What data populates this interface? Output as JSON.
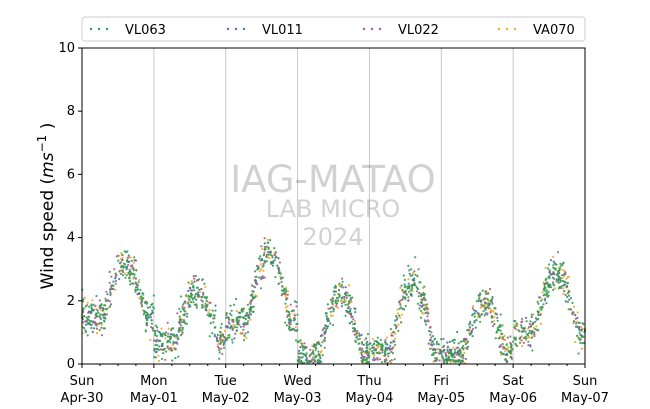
{
  "chart_data": {
    "type": "scatter",
    "title": "",
    "ylabel_prefix": "Wind speed (",
    "ylabel_unit": "ms",
    "ylabel_exp": "−1",
    "ylabel_suffix": " )",
    "xlabel": "",
    "xlim_days": [
      0,
      7
    ],
    "ylim": [
      0,
      10
    ],
    "y_ticks": [
      0,
      2,
      4,
      6,
      8,
      10
    ],
    "x_ticks": [
      {
        "line1": "Sun",
        "line2": "Apr-30"
      },
      {
        "line1": "Mon",
        "line2": "May-01"
      },
      {
        "line1": "Tue",
        "line2": "May-02"
      },
      {
        "line1": "Wed",
        "line2": "May-03"
      },
      {
        "line1": "Thu",
        "line2": "May-04"
      },
      {
        "line1": "Fri",
        "line2": "May-05"
      },
      {
        "line1": "Sat",
        "line2": "May-06"
      },
      {
        "line1": "Sun",
        "line2": "May-07"
      }
    ],
    "grid": "vertical at day boundaries",
    "legend_position": "top, above plot",
    "watermark": {
      "line1": "IAG-MATAO",
      "line2": "LAB MICRO",
      "line3": "2024"
    },
    "series": [
      {
        "name": "VL063",
        "color": "#2e9e4f"
      },
      {
        "name": "VL011",
        "color": "#4a6fa5"
      },
      {
        "name": "VL022",
        "color": "#b05a8c"
      },
      {
        "name": "VA070",
        "color": "#f5a623"
      }
    ],
    "daily_profile_ms": [
      {
        "day": "Apr-30",
        "night": 1.5,
        "peak": 3.2
      },
      {
        "day": "May-01",
        "night": 0.7,
        "peak": 2.3
      },
      {
        "day": "May-02",
        "night": 1.3,
        "peak": 3.5
      },
      {
        "day": "May-03",
        "night": 0.3,
        "peak": 2.2
      },
      {
        "day": "May-04",
        "night": 0.4,
        "peak": 2.6
      },
      {
        "day": "May-05",
        "night": 0.3,
        "peak": 1.9
      },
      {
        "day": "May-06",
        "night": 1.0,
        "peak": 2.9
      }
    ]
  }
}
